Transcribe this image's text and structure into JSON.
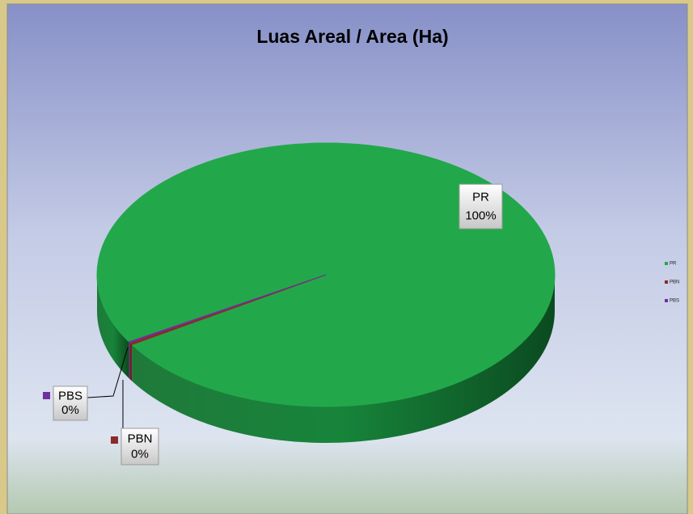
{
  "chart_data": {
    "type": "pie3d",
    "title": "Luas Areal / Area (Ha)",
    "categories": [
      "PR",
      "PBN",
      "PBS"
    ],
    "values": [
      99.6,
      0.3,
      0.1
    ],
    "value_labels": [
      "100%",
      "0%",
      "0%"
    ],
    "colors": [
      "#22a84a",
      "#8b2a2a",
      "#7030a0"
    ],
    "legend": "right"
  }
}
